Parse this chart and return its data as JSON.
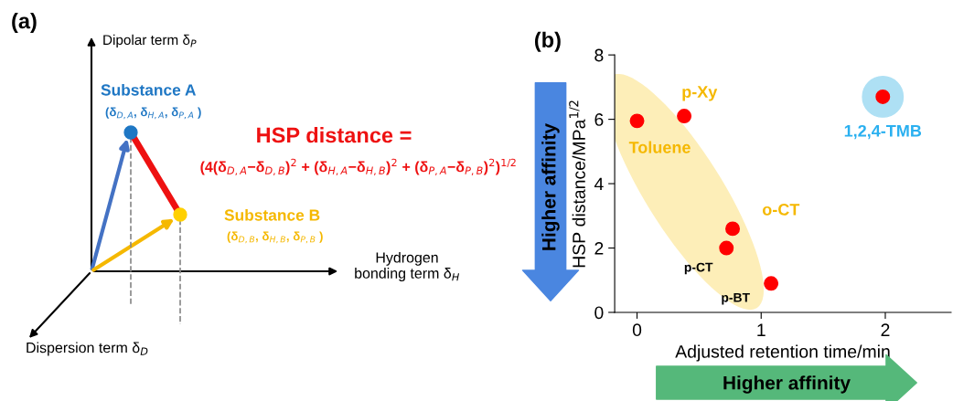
{
  "chart_data": [
    {
      "type": "other",
      "title": "(a)",
      "annotations": [
        "Dipolar term δ$_{P}$",
        "Substance A",
        "(δ$_{D,A}$, δ$_{H,A}$, δ$_{P,A}$ )",
        "HSP distance =",
        "(4(δ$_{D,A}$−δ$_{D,B}$)$^{2}$ + (δ$_{H,A}$−δ$_{H,B}$)$^{2}$ + (δ$_{P,A}$−δ$_{P,B}$)$^{2}$)$^{1/2}$",
        "Substance B",
        "(δ$_{D,B}$, δ$_{H,B}$, δ$_{P,B}$ )",
        "Hydrogen\nbonding term δ$_{H}$",
        "Dispersion term δ$_{D}$"
      ]
    },
    {
      "type": "scatter",
      "title": "(b)",
      "xlabel": "Adjusted retention time/min",
      "ylabel": "HSP distance/MPa$^{1/2}$",
      "x": [
        0,
        0.38,
        0.77,
        0.72,
        1.08,
        1.98
      ],
      "values": [
        5.95,
        6.1,
        2.6,
        2.0,
        0.9,
        6.7
      ],
      "color": "#ff0000",
      "marker": "circle",
      "xlim": [
        -0.18,
        2.53
      ],
      "ylim": [
        0,
        8
      ],
      "xticks": [
        0,
        1,
        2
      ],
      "yticks": [
        0,
        2,
        4,
        6,
        8
      ],
      "grid": false,
      "annotations": [
        {
          "text": "Toluene",
          "x": 0,
          "y": 5.95
        },
        {
          "text": "p-Xy",
          "x": 0.38,
          "y": 6.1
        },
        {
          "text": "o-CT",
          "x": 0.77,
          "y": 2.6
        },
        {
          "text": "p-CT",
          "x": 0.72,
          "y": 2.0
        },
        {
          "text": "p-BT",
          "x": 1.08,
          "y": 0.9
        },
        {
          "text": "1,2,4-TMB",
          "x": 1.98,
          "y": 6.7
        },
        "Higher affinity",
        "Higher affinity"
      ]
    }
  ]
}
